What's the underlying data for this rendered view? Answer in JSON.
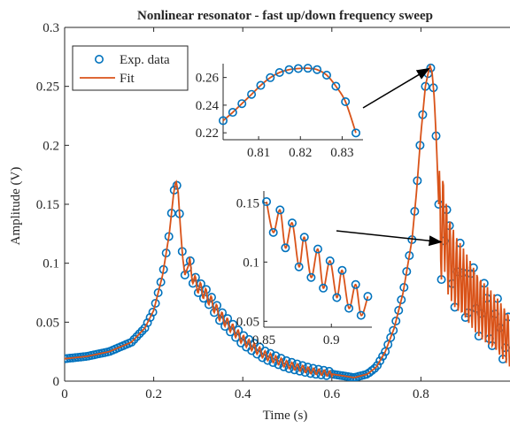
{
  "chart_data": {
    "type": "scatter",
    "title": "Nonlinear resonator - fast up/down frequency sweep",
    "xlabel": "Time (s)",
    "ylabel": "Amplitude (V)",
    "xlim": [
      0,
      1
    ],
    "ylim": [
      0,
      0.3
    ],
    "xticks": [
      "0",
      "0.2",
      "0.4",
      "0.6",
      "0.8"
    ],
    "yticks": [
      "0",
      "0.05",
      "0.1",
      "0.15",
      "0.2",
      "0.25",
      "0.3"
    ],
    "grid": false,
    "legend": {
      "position": "top-left",
      "entries": [
        "Exp. data",
        "Fit"
      ]
    },
    "colors": {
      "data": "#0072BD",
      "fit": "#D95319",
      "axis": "#262626",
      "arrow": "#000000"
    },
    "series": [
      {
        "name": "Exp. data",
        "style": "open-circles"
      },
      {
        "name": "Fit",
        "style": "line"
      }
    ],
    "main_curve": {
      "x": [
        0,
        0.05,
        0.1,
        0.15,
        0.18,
        0.2,
        0.22,
        0.235,
        0.245,
        0.25,
        0.255,
        0.26,
        0.265,
        0.27,
        0.28,
        0.29,
        0.3,
        0.32,
        0.35,
        0.4,
        0.45,
        0.5,
        0.55,
        0.6,
        0.65,
        0.68,
        0.7,
        0.72,
        0.74,
        0.76,
        0.78,
        0.79,
        0.8,
        0.81,
        0.82,
        0.825,
        0.83,
        0.835,
        0.84,
        0.845,
        0.85,
        0.86,
        0.87,
        0.88,
        0.9,
        0.92,
        0.95,
        1.0
      ],
      "y": [
        0.019,
        0.021,
        0.025,
        0.033,
        0.045,
        0.06,
        0.09,
        0.125,
        0.16,
        0.17,
        0.16,
        0.13,
        0.105,
        0.09,
        0.1,
        0.085,
        0.08,
        0.072,
        0.055,
        0.035,
        0.022,
        0.014,
        0.009,
        0.006,
        0.003,
        0.006,
        0.012,
        0.025,
        0.045,
        0.075,
        0.12,
        0.16,
        0.21,
        0.25,
        0.268,
        0.262,
        0.24,
        0.2,
        0.15,
        0.12,
        0.14,
        0.11,
        0.1,
        0.09,
        0.08,
        0.07,
        0.055,
        0.035
      ]
    },
    "insets": [
      {
        "xlim": [
          0.8015,
          0.835
        ],
        "ylim": [
          0.215,
          0.27
        ],
        "xticks": [
          "0.81",
          "0.82",
          "0.83"
        ],
        "yticks": [
          "0.22",
          "0.24",
          "0.26"
        ],
        "x": [
          0.8015,
          0.8038,
          0.806,
          0.8083,
          0.8105,
          0.8128,
          0.815,
          0.8173,
          0.8195,
          0.8218,
          0.824,
          0.8263,
          0.8285,
          0.8308,
          0.8333
        ],
        "y": [
          0.2288,
          0.2348,
          0.2411,
          0.2478,
          0.2543,
          0.2599,
          0.2636,
          0.2657,
          0.2665,
          0.2667,
          0.2657,
          0.2617,
          0.2537,
          0.2425,
          0.2199
        ],
        "arrow_target": [
          0.818,
          0.265
        ]
      },
      {
        "xlim": [
          0.85,
          0.93
        ],
        "ylim": [
          0.045,
          0.16
        ],
        "xticks": [
          "0.85",
          "0.9"
        ],
        "yticks": [
          "0.05",
          "0.1",
          "0.15"
        ],
        "x": [
          0.852,
          0.857,
          0.862,
          0.866,
          0.871,
          0.876,
          0.88,
          0.885,
          0.89,
          0.894,
          0.899,
          0.904,
          0.908,
          0.913,
          0.918,
          0.922,
          0.927
        ],
        "y": [
          0.151,
          0.125,
          0.144,
          0.112,
          0.133,
          0.096,
          0.121,
          0.087,
          0.111,
          0.078,
          0.101,
          0.07,
          0.093,
          0.061,
          0.081,
          0.055,
          0.071
        ],
        "arrow_target": [
          0.845,
          0.118
        ]
      }
    ]
  }
}
